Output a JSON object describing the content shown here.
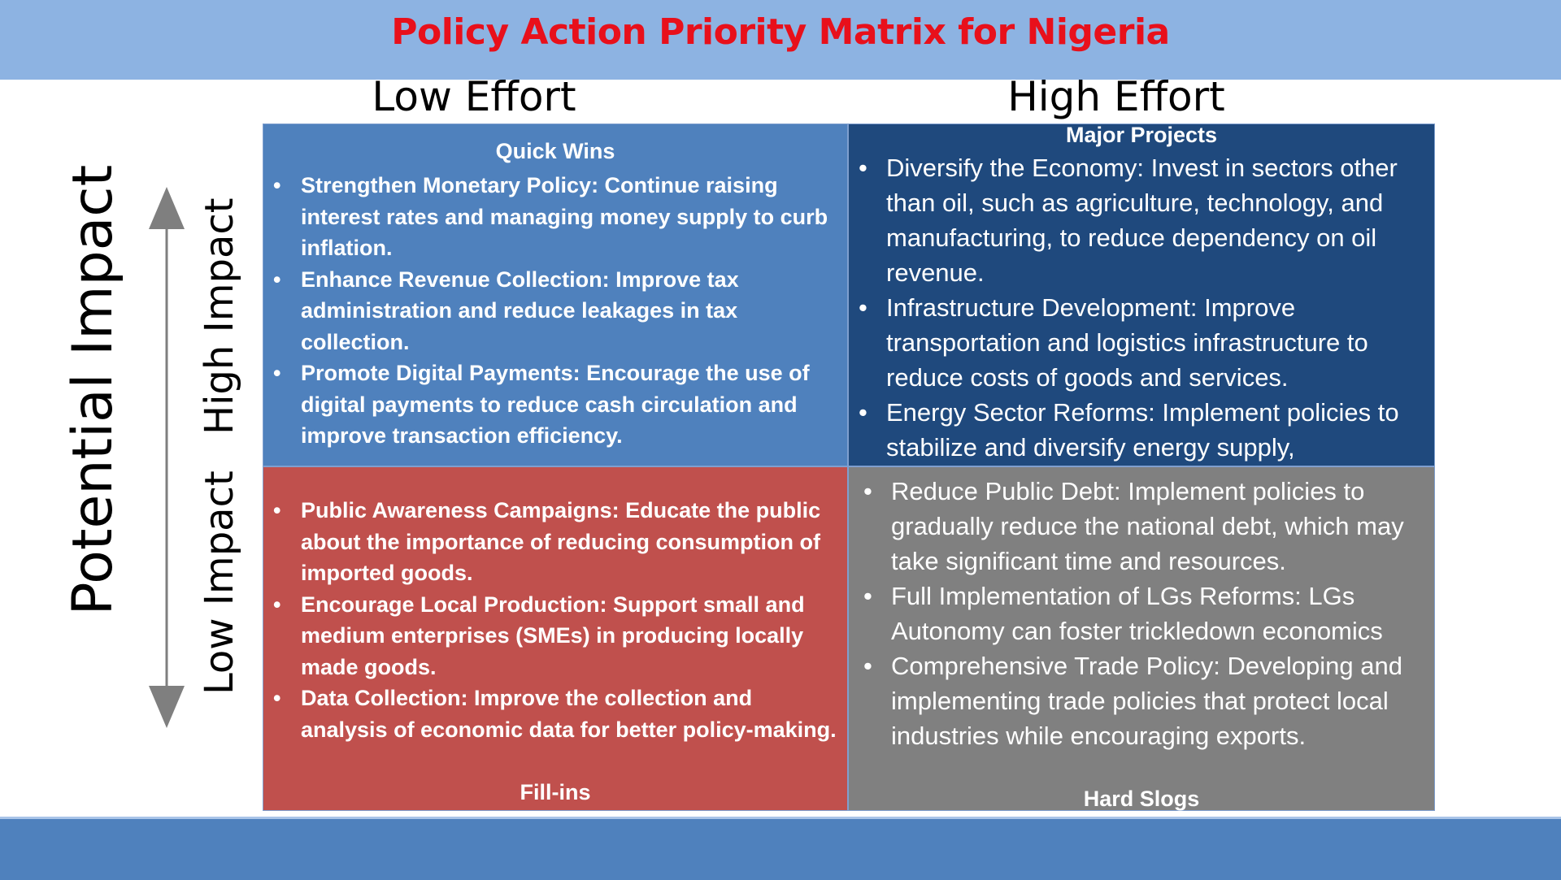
{
  "title": "Policy Action Priority Matrix for Nigeria",
  "columns": {
    "low_effort": "Low Effort",
    "high_effort": "High Effort"
  },
  "axis": {
    "label": "Potential Impact",
    "high": "High Impact",
    "low": "Low Impact"
  },
  "colors": {
    "title_bar": "#8db3e2",
    "title_text": "#e8101b",
    "quick_wins": "#4f81bd",
    "major_projects": "#1f497d",
    "fill_ins": "#c0504d",
    "hard_slogs": "#808080",
    "bottom_bar": "#4f81bd"
  },
  "quadrants": {
    "quick_wins": {
      "title": "Quick Wins",
      "items": [
        "Strengthen Monetary Policy: Continue raising interest rates and managing money supply to curb inflation.",
        "Enhance Revenue Collection: Improve tax administration and reduce leakages in tax collection.",
        "Promote Digital Payments: Encourage the use of digital payments to reduce cash circulation and improve transaction efficiency."
      ]
    },
    "major_projects": {
      "title": "Major Projects",
      "items": [
        "Diversify the Economy: Invest in sectors other than oil, such as agriculture, technology, and manufacturing, to reduce dependency on oil revenue.",
        "Infrastructure Development: Improve transportation and logistics infrastructure to reduce costs of goods and services.",
        "Energy Sector Reforms: Implement policies to stabilize and diversify energy supply,"
      ]
    },
    "fill_ins": {
      "title": "Fill-ins",
      "items": [
        "Public Awareness Campaigns: Educate the public about the importance of reducing consumption of imported goods.",
        "Encourage Local Production: Support small and medium enterprises (SMEs) in producing locally made goods.",
        "Data Collection: Improve the collection and analysis of economic data for better policy-making."
      ]
    },
    "hard_slogs": {
      "title": "Hard Slogs",
      "items": [
        "Reduce Public Debt: Implement policies to gradually reduce the national debt, which may take significant time and resources.",
        "Full Implementation of LGs Reforms: LGs Autonomy can foster trickledown economics",
        "Comprehensive Trade Policy: Developing and implementing trade policies that protect local industries while encouraging exports."
      ]
    }
  }
}
